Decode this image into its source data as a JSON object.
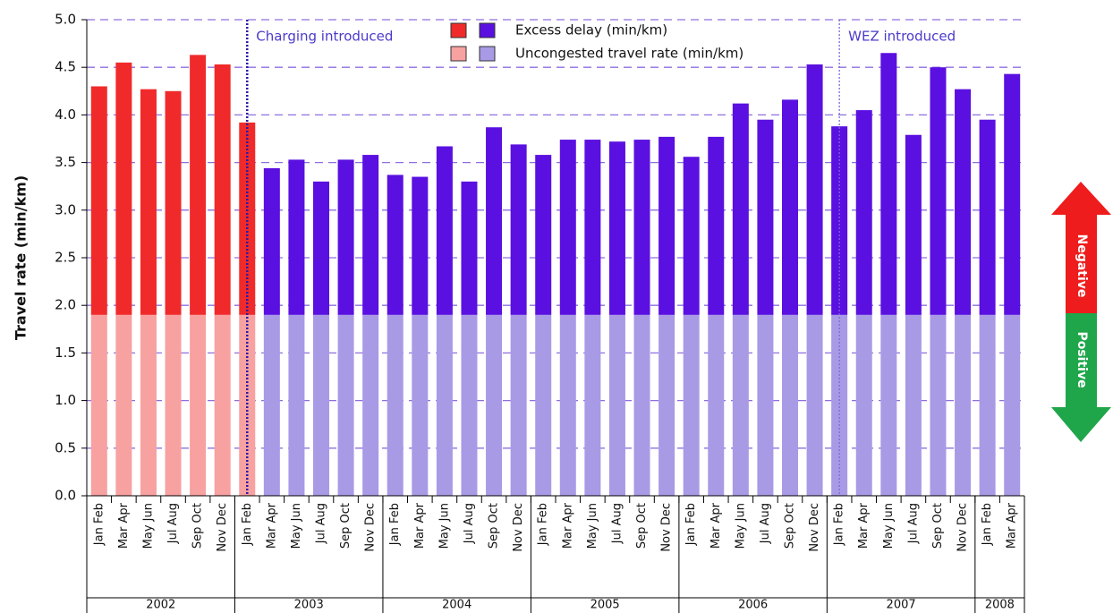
{
  "chart_data": {
    "type": "stacked_bar",
    "y_label": "Travel rate (min/km)",
    "categories": [
      "Jan Feb",
      "Mar Apr",
      "May Jun",
      "Jul Aug",
      "Sep Oct",
      "Nov Dec",
      "Jan Feb",
      "Mar Apr",
      "May Jun",
      "Jul Aug",
      "Sep Oct",
      "Nov Dec",
      "Jan Feb",
      "Mar Apr",
      "May Jun",
      "Jul Aug",
      "Sep Oct",
      "Nov Dec",
      "Jan Feb",
      "Mar Apr",
      "May Jun",
      "Jul Aug",
      "Sep Oct",
      "Nov Dec",
      "Jan Feb",
      "Mar Apr",
      "May Jun",
      "Jul Aug",
      "Sep Oct",
      "Nov Dec",
      "Jan Feb",
      "Mar Apr",
      "May Jun",
      "Jul Aug",
      "Sep Oct",
      "Nov Dec",
      "Jan Feb",
      "Mar Apr"
    ],
    "groups": [
      {
        "label": "2002",
        "size": 6
      },
      {
        "label": "2003",
        "size": 6
      },
      {
        "label": "2004",
        "size": 6
      },
      {
        "label": "2005",
        "size": 6
      },
      {
        "label": "2006",
        "size": 6
      },
      {
        "label": "2007",
        "size": 6
      },
      {
        "label": "2008",
        "size": 2
      }
    ],
    "series": [
      {
        "name": "Uncongested travel rate (min/km)",
        "colors": [
          "#f7a1a1",
          "#a99ae6"
        ],
        "values": [
          1.9,
          1.9,
          1.9,
          1.9,
          1.9,
          1.9,
          1.9,
          1.9,
          1.9,
          1.9,
          1.9,
          1.9,
          1.9,
          1.9,
          1.9,
          1.9,
          1.9,
          1.9,
          1.9,
          1.9,
          1.9,
          1.9,
          1.9,
          1.9,
          1.9,
          1.9,
          1.9,
          1.9,
          1.9,
          1.9,
          1.9,
          1.9,
          1.9,
          1.9,
          1.9,
          1.9,
          1.9,
          1.9
        ]
      },
      {
        "name": "Excess delay (min/km)",
        "colors": [
          "#f02a2a",
          "#5a10e0"
        ],
        "values": [
          2.4,
          2.65,
          2.37,
          2.35,
          2.73,
          2.63,
          2.02,
          1.54,
          1.63,
          1.4,
          1.63,
          1.68,
          1.47,
          1.45,
          1.77,
          1.4,
          1.97,
          1.79,
          1.68,
          1.84,
          1.84,
          1.82,
          1.84,
          1.87,
          1.66,
          1.87,
          2.22,
          2.05,
          2.26,
          2.63,
          1.98,
          2.15,
          2.75,
          1.89,
          2.6,
          2.37,
          2.05,
          2.53
        ]
      }
    ],
    "annotations": [
      {
        "text": "Charging introduced",
        "x": 6.5
      },
      {
        "text": "WEZ introduced",
        "x": 30.5
      }
    ],
    "ylim": [
      0,
      5
    ],
    "yticks": [
      {
        "value": 0,
        "label": "0.0"
      },
      0.5,
      {
        "value": 1,
        "label": "1.0"
      },
      1.5,
      {
        "value": 2,
        "label": "2.0"
      },
      2.5,
      {
        "value": 3,
        "label": "3.0"
      },
      3.5,
      {
        "value": 4,
        "label": "4.0"
      },
      4.5,
      {
        "value": 5,
        "label": "5.0"
      }
    ],
    "grid": true,
    "arrow": {
      "up": "Negative",
      "down": "Positive"
    }
  }
}
